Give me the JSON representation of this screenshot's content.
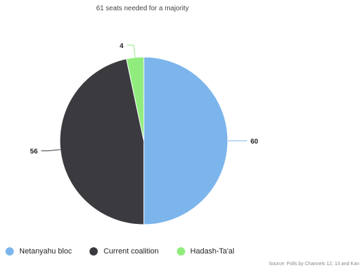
{
  "chart_data": {
    "type": "pie",
    "subtitle": "61 seats needed for a majority",
    "categories": [
      "Netanyahu bloc",
      "Current coalition",
      "Hadash-Ta'al"
    ],
    "values": [
      60,
      56,
      4
    ],
    "colors": [
      "#7cb5ec",
      "#3a3a3f",
      "#90ed7d"
    ],
    "data_labels": [
      "60",
      "56",
      "4"
    ],
    "legend_position": "bottom-left",
    "source": "Source: Polls by Channels 12, 13 and Kan"
  }
}
